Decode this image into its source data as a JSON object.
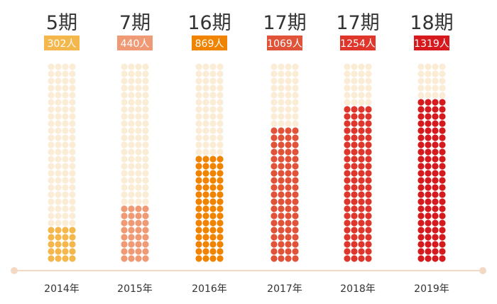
{
  "chart_data": {
    "type": "bar",
    "categories": [
      "2014年",
      "2015年",
      "2016年",
      "2017年",
      "2018年",
      "2019年"
    ],
    "periods": [
      "5期",
      "7期",
      "16期",
      "17期",
      "17期",
      "18期"
    ],
    "values": [
      302,
      440,
      869,
      1069,
      1254,
      1319
    ],
    "value_labels": [
      "302人",
      "440人",
      "869人",
      "1069人",
      "1254人",
      "1319人"
    ],
    "ylim": [
      0,
      1600
    ],
    "grid": false,
    "colors": [
      "#f4b74c",
      "#ef9a74",
      "#f08300",
      "#e05339",
      "#e0352a",
      "#d7191d"
    ],
    "empty_color": "#fbecd5",
    "axis_color": "#f3d9c4"
  }
}
